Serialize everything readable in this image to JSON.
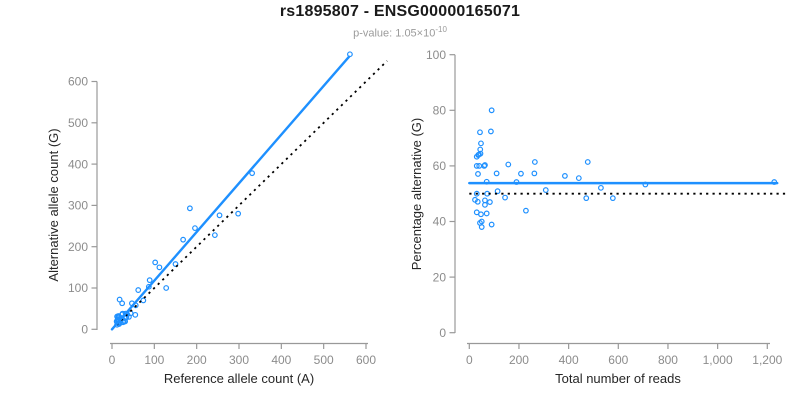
{
  "header": {
    "title": "rs1895807 - ENSG00000165071",
    "subtitle_prefix": "p-value: 1.05×10",
    "subtitle_exponent": "-10"
  },
  "colors": {
    "points": "#1E90FF",
    "fit_line": "#1E90FF",
    "reference_line": "#000000",
    "axis": "#999999",
    "tick_label": "#8c8c8c",
    "axis_title": "#262626",
    "subtitle": "#9b9b9b"
  },
  "chart_data": [
    {
      "type": "scatter",
      "title": "rs1895807 - ENSG00000165071",
      "subtitle": "p-value: 1.05×10^-10",
      "xlabel": "Reference allele count (A)",
      "ylabel": "Alternative allele count (G)",
      "xlim": [
        0,
        650
      ],
      "ylim": [
        0,
        672
      ],
      "grid": false,
      "legend": null,
      "xticks": {
        "values": [
          0,
          100,
          200,
          300,
          400,
          500,
          600
        ],
        "labels": [
          "0",
          "100",
          "200",
          "300",
          "400",
          "500",
          "600"
        ]
      },
      "yticks": {
        "values": [
          0,
          100,
          200,
          300,
          400,
          500,
          600
        ],
        "labels": [
          "0",
          "100",
          "200",
          "300",
          "400",
          "500",
          "600"
        ]
      },
      "fit_line": {
        "x": [
          0,
          560
        ],
        "y": [
          0,
          660
        ],
        "style": "solid"
      },
      "reference_line": {
        "x": [
          0,
          650
        ],
        "y": [
          0,
          650
        ],
        "style": "dotted"
      },
      "points": [
        [
          18,
          72
        ],
        [
          12,
          31
        ],
        [
          24,
          63
        ],
        [
          15,
          32
        ],
        [
          13,
          23
        ],
        [
          14,
          25
        ],
        [
          11,
          19
        ],
        [
          16,
          29
        ],
        [
          15,
          29
        ],
        [
          25,
          38
        ],
        [
          12,
          18
        ],
        [
          15,
          20
        ],
        [
          16,
          24
        ],
        [
          24,
          36
        ],
        [
          47,
          63
        ],
        [
          32,
          38
        ],
        [
          15,
          15
        ],
        [
          36,
          36
        ],
        [
          56,
          58
        ],
        [
          12,
          11
        ],
        [
          18,
          16
        ],
        [
          33,
          30
        ],
        [
          44,
          39
        ],
        [
          34,
          29
        ],
        [
          17,
          13
        ],
        [
          40,
          30
        ],
        [
          27,
          20
        ],
        [
          30,
          20
        ],
        [
          26,
          17
        ],
        [
          55,
          35
        ],
        [
          31,
          19
        ],
        [
          62,
          95
        ],
        [
          74,
          70
        ],
        [
          87,
          103
        ],
        [
          89,
          119
        ],
        [
          102,
          162
        ],
        [
          112,
          150
        ],
        [
          128,
          100
        ],
        [
          150,
          158
        ],
        [
          168,
          217
        ],
        [
          184,
          293
        ],
        [
          196,
          245
        ],
        [
          243,
          228
        ],
        [
          254,
          276
        ],
        [
          298,
          280
        ],
        [
          331,
          378
        ],
        [
          562,
          666
        ]
      ]
    },
    {
      "type": "scatter",
      "title": "rs1895807 - ENSG00000165071",
      "subtitle": "p-value: 1.05×10^-10",
      "xlabel": "Total number of reads",
      "ylabel": "Percentage alternative (G)",
      "xlim": [
        0,
        1290
      ],
      "ylim": [
        0,
        100
      ],
      "grid": false,
      "legend": null,
      "xticks": {
        "values": [
          0,
          200,
          400,
          600,
          800,
          1000,
          1200
        ],
        "labels": [
          "0",
          "200",
          "400",
          "600",
          "800",
          "1,000",
          "1,200"
        ]
      },
      "yticks": {
        "values": [
          0,
          20,
          40,
          60,
          80,
          100
        ],
        "labels": [
          "0",
          "20",
          "40",
          "60",
          "80",
          "100"
        ]
      },
      "fit_line": {
        "x": [
          0,
          1240
        ],
        "y": [
          53.8,
          53.8
        ],
        "style": "solid"
      },
      "reference_line": {
        "x": [
          0,
          1280
        ],
        "y": [
          50,
          50
        ],
        "style": "dotted"
      },
      "points": [
        [
          90,
          80
        ],
        [
          43,
          72.1
        ],
        [
          87,
          72.4
        ],
        [
          47,
          68.1
        ],
        [
          36,
          63.9
        ],
        [
          39,
          64.1
        ],
        [
          30,
          63.3
        ],
        [
          45,
          64.4
        ],
        [
          44,
          65.9
        ],
        [
          63,
          60.3
        ],
        [
          30,
          60
        ],
        [
          35,
          57.1
        ],
        [
          40,
          60
        ],
        [
          60,
          60
        ],
        [
          110,
          57.3
        ],
        [
          70,
          54.3
        ],
        [
          30,
          50
        ],
        [
          72,
          50
        ],
        [
          114,
          50.9
        ],
        [
          23,
          47.8
        ],
        [
          34,
          47.1
        ],
        [
          63,
          47.6
        ],
        [
          83,
          47
        ],
        [
          63,
          46
        ],
        [
          30,
          43.3
        ],
        [
          70,
          42.9
        ],
        [
          47,
          42.6
        ],
        [
          50,
          40
        ],
        [
          43,
          39.5
        ],
        [
          90,
          38.9
        ],
        [
          50,
          38
        ],
        [
          157,
          60.5
        ],
        [
          144,
          48.6
        ],
        [
          190,
          54.2
        ],
        [
          208,
          57.2
        ],
        [
          264,
          61.4
        ],
        [
          262,
          57.3
        ],
        [
          228,
          43.9
        ],
        [
          308,
          51.3
        ],
        [
          385,
          56.4
        ],
        [
          477,
          61.4
        ],
        [
          441,
          55.6
        ],
        [
          471,
          48.4
        ],
        [
          530,
          52.1
        ],
        [
          578,
          48.4
        ],
        [
          709,
          53.3
        ],
        [
          1228,
          54.2
        ]
      ]
    }
  ]
}
